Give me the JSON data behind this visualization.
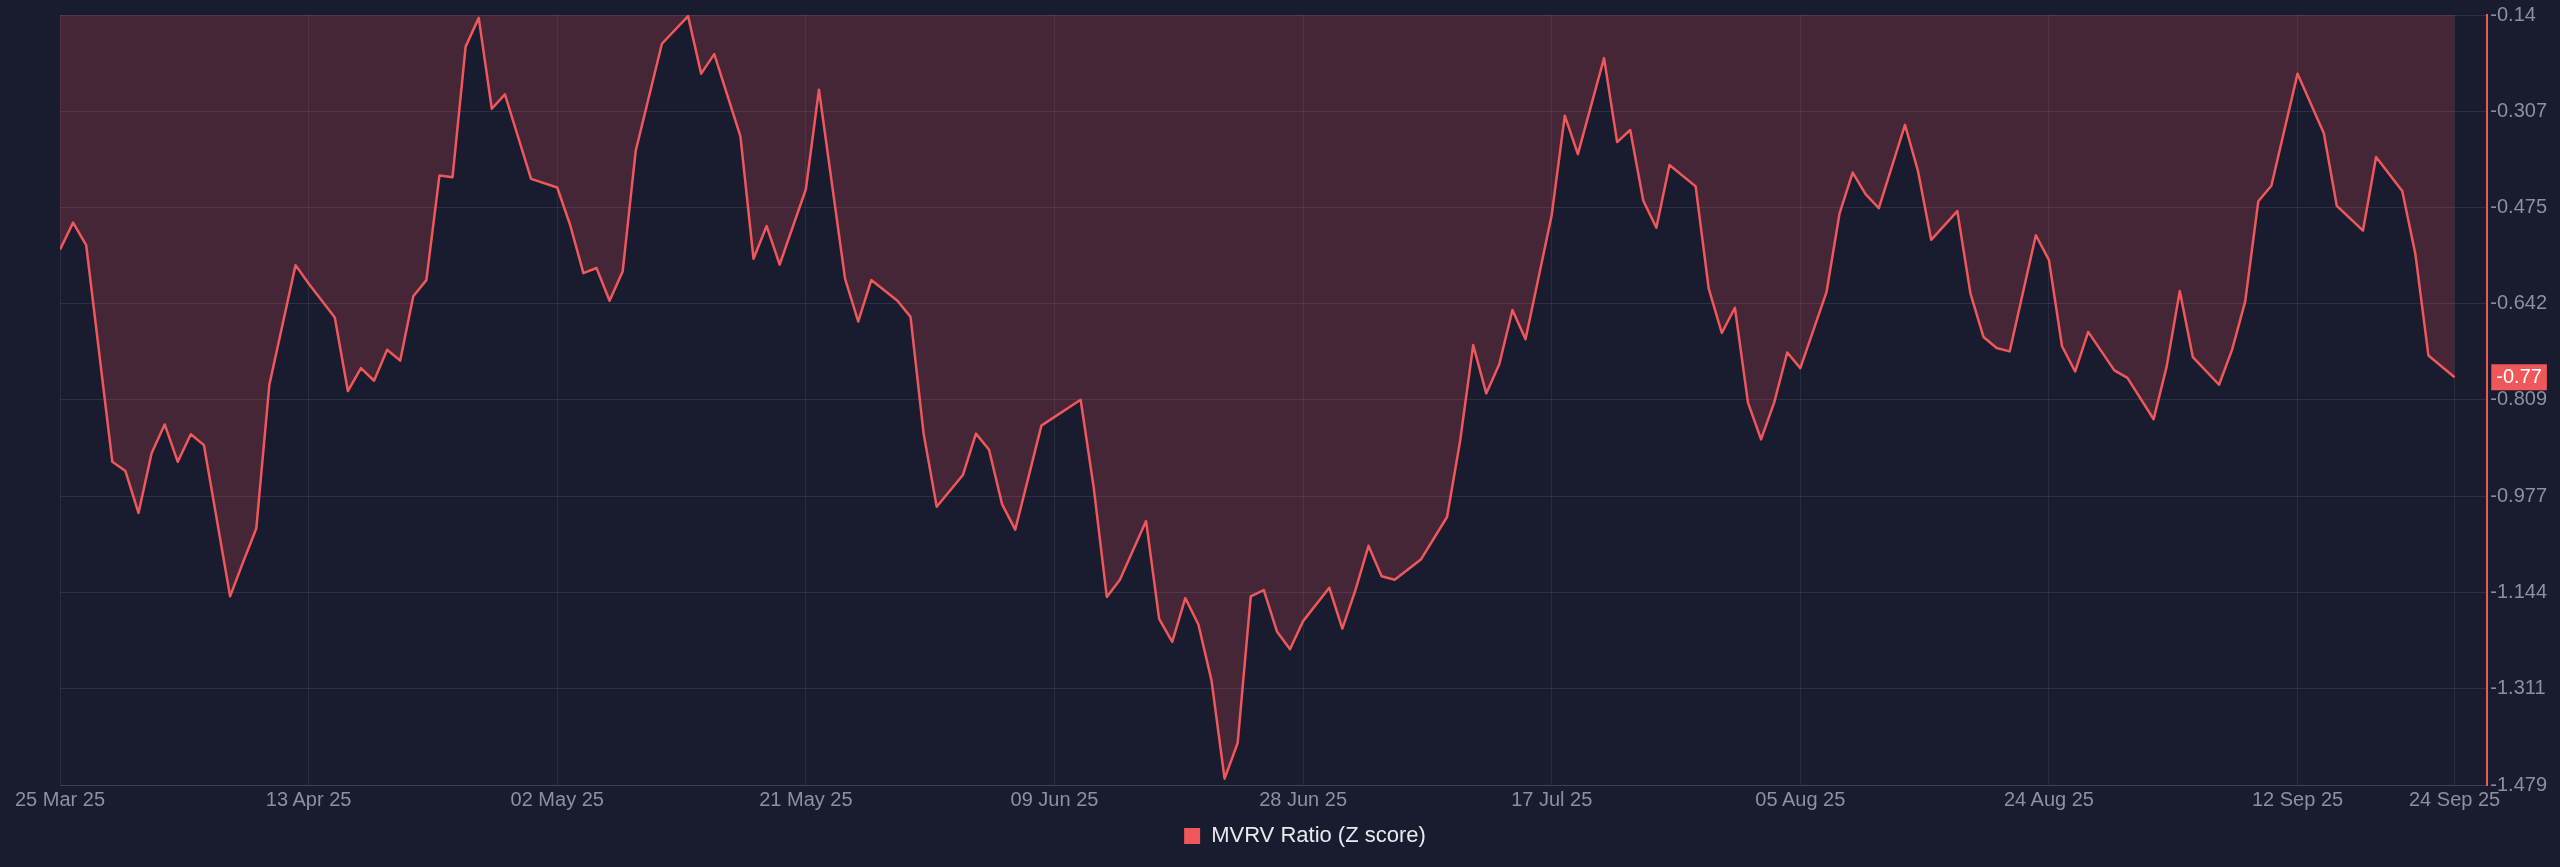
{
  "chart_data": {
    "type": "area",
    "x": [
      "2025-03-25",
      "2025-03-26",
      "2025-03-27",
      "2025-03-29",
      "2025-03-30",
      "2025-03-31",
      "2025-04-01",
      "2025-04-02",
      "2025-04-03",
      "2025-04-04",
      "2025-04-05",
      "2025-04-07",
      "2025-04-08",
      "2025-04-09",
      "2025-04-10",
      "2025-04-12",
      "2025-04-13",
      "2025-04-15",
      "2025-04-16",
      "2025-04-17",
      "2025-04-18",
      "2025-04-19",
      "2025-04-20",
      "2025-04-21",
      "2025-04-22",
      "2025-04-23",
      "2025-04-24",
      "2025-04-25",
      "2025-04-26",
      "2025-04-27",
      "2025-04-28",
      "2025-04-30",
      "2025-05-02",
      "2025-05-03",
      "2025-05-04",
      "2025-05-05",
      "2025-05-06",
      "2025-05-07",
      "2025-05-08",
      "2025-05-10",
      "2025-05-12",
      "2025-05-13",
      "2025-05-14",
      "2025-05-16",
      "2025-05-17",
      "2025-05-18",
      "2025-05-19",
      "2025-05-21",
      "2025-05-22",
      "2025-05-24",
      "2025-05-25",
      "2025-05-26",
      "2025-05-28",
      "2025-05-29",
      "2025-05-30",
      "2025-05-31",
      "2025-06-02",
      "2025-06-03",
      "2025-06-04",
      "2025-06-05",
      "2025-06-06",
      "2025-06-07",
      "2025-06-08",
      "2025-06-11",
      "2025-06-12",
      "2025-06-13",
      "2025-06-14",
      "2025-06-16",
      "2025-06-17",
      "2025-06-18",
      "2025-06-19",
      "2025-06-20",
      "2025-06-21",
      "2025-06-22",
      "2025-06-23",
      "2025-06-24",
      "2025-06-25",
      "2025-06-26",
      "2025-06-27",
      "2025-06-28",
      "2025-06-30",
      "2025-07-01",
      "2025-07-02",
      "2025-07-03",
      "2025-07-04",
      "2025-07-05",
      "2025-07-07",
      "2025-07-09",
      "2025-07-10",
      "2025-07-11",
      "2025-07-12",
      "2025-07-13",
      "2025-07-14",
      "2025-07-15",
      "2025-07-17",
      "2025-07-18",
      "2025-07-19",
      "2025-07-21",
      "2025-07-22",
      "2025-07-23",
      "2025-07-24",
      "2025-07-25",
      "2025-07-26",
      "2025-07-28",
      "2025-07-29",
      "2025-07-30",
      "2025-07-31",
      "2025-08-01",
      "2025-08-02",
      "2025-08-03",
      "2025-08-04",
      "2025-08-05",
      "2025-08-07",
      "2025-08-08",
      "2025-08-09",
      "2025-08-10",
      "2025-08-11",
      "2025-08-13",
      "2025-08-14",
      "2025-08-15",
      "2025-08-17",
      "2025-08-18",
      "2025-08-19",
      "2025-08-20",
      "2025-08-21",
      "2025-08-23",
      "2025-08-24",
      "2025-08-25",
      "2025-08-26",
      "2025-08-27",
      "2025-08-29",
      "2025-08-30",
      "2025-09-01",
      "2025-09-02",
      "2025-09-03",
      "2025-09-04",
      "2025-09-06",
      "2025-09-07",
      "2025-09-08",
      "2025-09-09",
      "2025-09-10",
      "2025-09-12",
      "2025-09-14",
      "2025-09-15",
      "2025-09-17",
      "2025-09-18",
      "2025-09-20",
      "2025-09-21",
      "2025-09-22",
      "2025-09-24"
    ],
    "series": [
      {
        "name": "MVRV Ratio (Z score)",
        "color": "#f0575a",
        "values": [
          -0.548,
          -0.501,
          -0.54,
          -0.917,
          -0.933,
          -1.006,
          -0.902,
          -0.852,
          -0.917,
          -0.869,
          -0.888,
          -1.151,
          -1.091,
          -1.033,
          -0.783,
          -0.575,
          -0.607,
          -0.666,
          -0.794,
          -0.754,
          -0.776,
          -0.722,
          -0.741,
          -0.629,
          -0.601,
          -0.419,
          -0.422,
          -0.195,
          -0.145,
          -0.303,
          -0.278,
          -0.425,
          -0.44,
          -0.506,
          -0.589,
          -0.58,
          -0.637,
          -0.586,
          -0.376,
          -0.19,
          -0.142,
          -0.242,
          -0.208,
          -0.351,
          -0.564,
          -0.507,
          -0.574,
          -0.443,
          -0.27,
          -0.599,
          -0.673,
          -0.601,
          -0.637,
          -0.665,
          -0.868,
          -0.995,
          -0.94,
          -0.868,
          -0.896,
          -0.991,
          -1.035,
          -0.945,
          -0.854,
          -0.809,
          -0.962,
          -1.152,
          -1.122,
          -1.02,
          -1.19,
          -1.23,
          -1.154,
          -1.2,
          -1.297,
          -1.468,
          -1.406,
          -1.151,
          -1.14,
          -1.212,
          -1.243,
          -1.194,
          -1.136,
          -1.207,
          -1.14,
          -1.063,
          -1.116,
          -1.122,
          -1.087,
          -1.013,
          -0.881,
          -0.714,
          -0.798,
          -0.747,
          -0.653,
          -0.704,
          -0.488,
          -0.315,
          -0.382,
          -0.215,
          -0.361,
          -0.34,
          -0.463,
          -0.51,
          -0.401,
          -0.438,
          -0.616,
          -0.693,
          -0.649,
          -0.814,
          -0.878,
          -0.814,
          -0.727,
          -0.754,
          -0.622,
          -0.485,
          -0.414,
          -0.452,
          -0.476,
          -0.331,
          -0.412,
          -0.531,
          -0.481,
          -0.624,
          -0.7,
          -0.719,
          -0.725,
          -0.523,
          -0.566,
          -0.716,
          -0.76,
          -0.691,
          -0.758,
          -0.771,
          -0.843,
          -0.751,
          -0.62,
          -0.735,
          -0.783,
          -0.722,
          -0.638,
          -0.464,
          -0.437,
          -0.242,
          -0.345,
          -0.472,
          -0.515,
          -0.387,
          -0.446,
          -0.555,
          -0.732,
          -0.77
        ]
      }
    ],
    "xlim": [
      "2025-03-25",
      "2025-09-26T12:00"
    ],
    "xticks": [
      {
        "value": "2025-03-25",
        "label": "25 Mar 25"
      },
      {
        "value": "2025-04-13",
        "label": "13 Apr 25"
      },
      {
        "value": "2025-05-02",
        "label": "02 May 25"
      },
      {
        "value": "2025-05-21",
        "label": "21 May 25"
      },
      {
        "value": "2025-06-09",
        "label": "09 Jun 25"
      },
      {
        "value": "2025-06-28",
        "label": "28 Jun 25"
      },
      {
        "value": "2025-07-17",
        "label": "17 Jul 25"
      },
      {
        "value": "2025-08-05",
        "label": "05 Aug 25"
      },
      {
        "value": "2025-08-24",
        "label": "24 Aug 25"
      },
      {
        "value": "2025-09-12",
        "label": "12 Sep 25"
      },
      {
        "value": "2025-09-24",
        "label": "24 Sep 25"
      }
    ],
    "ylim": [
      -1.479,
      -0.14
    ],
    "yticks": [
      -1.479,
      -1.311,
      -1.144,
      -0.977,
      -0.809,
      -0.642,
      -0.475,
      -0.307,
      -0.14
    ],
    "grid": true,
    "legend": "bottom",
    "annotations": [
      {
        "text": "-0.77",
        "x": "2025-09-24",
        "y": -0.77
      }
    ]
  }
}
